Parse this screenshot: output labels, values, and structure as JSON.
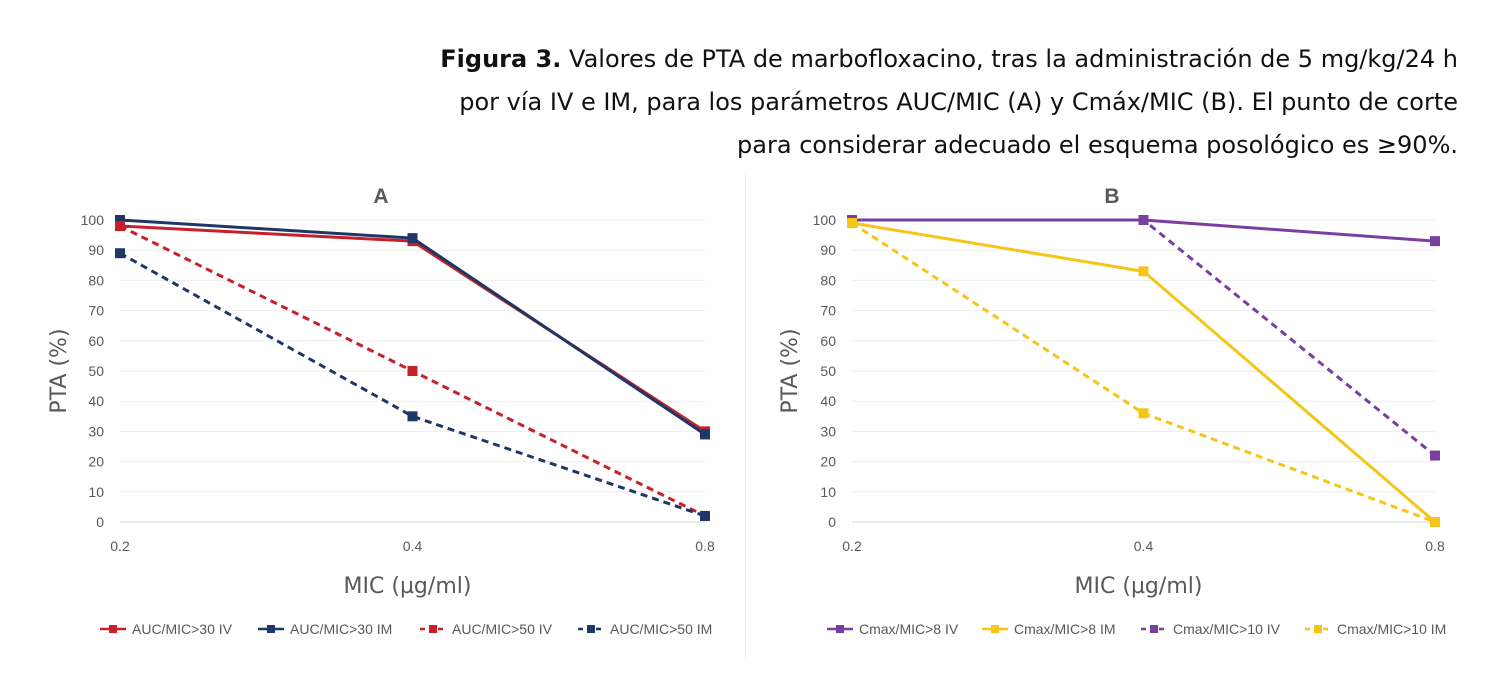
{
  "caption": {
    "lead": "Figura 3.",
    "line1": "Valores de PTA de marbofloxacino, tras la administración de 5 mg/kg/24 h",
    "line2": "por vía IV e IM, para los parámetros AUC/MIC (A) y Cmáx/MIC (B). El punto de corte",
    "line3": "para considerar adecuado el esquema posológico es ≥90%."
  },
  "colors": {
    "red": "#c8202a",
    "navy": "#1f3766",
    "purple": "#7a3fa0",
    "yellow": "#f5c518"
  },
  "chart_data": [
    {
      "type": "line",
      "title": "A",
      "xlabel": "MIC (µg/ml)",
      "ylabel": "PTA (%)",
      "categories": [
        "0.2",
        "0.4",
        "0.8"
      ],
      "ylim": [
        0,
        100
      ],
      "yticks": [
        "0",
        "10",
        "20",
        "30",
        "40",
        "50",
        "60",
        "70",
        "80",
        "90",
        "100"
      ],
      "grid": true,
      "legend": "bottom",
      "series": [
        {
          "name": "AUC/MIC>30 IV",
          "values": [
            98,
            93,
            30
          ],
          "color": "#c8202a",
          "dashed": false
        },
        {
          "name": "AUC/MIC>30 IM",
          "values": [
            100,
            94,
            29
          ],
          "color": "#1f3766",
          "dashed": false
        },
        {
          "name": "AUC/MIC>50 IV",
          "values": [
            98,
            50,
            2
          ],
          "color": "#c8202a",
          "dashed": true
        },
        {
          "name": "AUC/MIC>50 IM",
          "values": [
            89,
            35,
            2
          ],
          "color": "#1f3766",
          "dashed": true
        }
      ]
    },
    {
      "type": "line",
      "title": "B",
      "xlabel": "MIC (µg/ml)",
      "ylabel": "PTA (%)",
      "categories": [
        "0.2",
        "0.4",
        "0.8"
      ],
      "ylim": [
        0,
        100
      ],
      "yticks": [
        "0",
        "10",
        "20",
        "30",
        "40",
        "50",
        "60",
        "70",
        "80",
        "90",
        "100"
      ],
      "grid": true,
      "legend": "bottom",
      "series": [
        {
          "name": "Cmax/MIC>8 IV",
          "values": [
            100,
            100,
            93
          ],
          "color": "#7a3fa0",
          "dashed": false
        },
        {
          "name": "Cmax/MIC>8 IM",
          "values": [
            99,
            83,
            0
          ],
          "color": "#f5c518",
          "dashed": false
        },
        {
          "name": "Cmax/MIC>10 IV",
          "values": [
            100,
            100,
            22
          ],
          "color": "#7a3fa0",
          "dashed": true
        },
        {
          "name": "Cmax/MIC>10 IM",
          "values": [
            99,
            36,
            0
          ],
          "color": "#f5c518",
          "dashed": true
        }
      ]
    }
  ]
}
